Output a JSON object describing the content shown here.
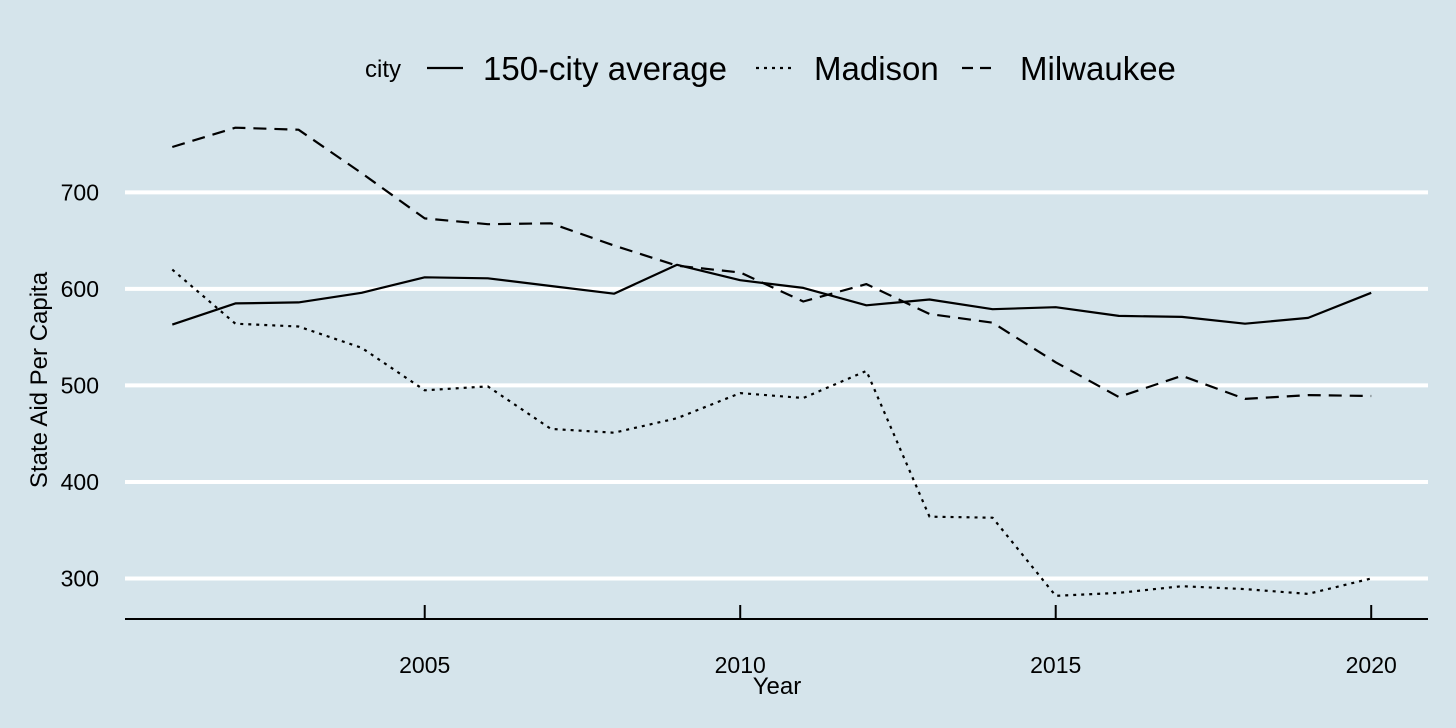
{
  "chart_data": {
    "type": "line",
    "title": "",
    "xlabel": "Year",
    "ylabel": "State Aid Per Capita",
    "xlim": [
      2000.25,
      2020.9
    ],
    "ylim": [
      258,
      775
    ],
    "x_ticks": [
      2005,
      2010,
      2015,
      2020
    ],
    "y_ticks": [
      300,
      400,
      500,
      600,
      700
    ],
    "grid": true,
    "legend_position": "top",
    "legend_title": "city",
    "x": [
      2001,
      2002,
      2003,
      2004,
      2005,
      2006,
      2007,
      2008,
      2009,
      2010,
      2011,
      2012,
      2013,
      2014,
      2015,
      2016,
      2017,
      2018,
      2019,
      2020
    ],
    "series": [
      {
        "name": "150-city average",
        "dash": "solid",
        "values": [
          563,
          585,
          586,
          596,
          612,
          611,
          603,
          595,
          625,
          609,
          601,
          583,
          589,
          579,
          581,
          572,
          571,
          564,
          570,
          596
        ]
      },
      {
        "name": "Madison",
        "dash": "dotted",
        "values": [
          620,
          564,
          561,
          539,
          495,
          499,
          455,
          451,
          466,
          492,
          487,
          515,
          364,
          363,
          282,
          285,
          292,
          289,
          284,
          300
        ]
      },
      {
        "name": "Milwaukee",
        "dash": "dashed",
        "values": [
          747,
          767,
          765,
          720,
          673,
          667,
          668,
          645,
          624,
          617,
          587,
          605,
          574,
          565,
          524,
          488,
          510,
          486,
          490,
          489
        ]
      }
    ]
  },
  "colors": {
    "background": "#d5e4eb",
    "gridline": "#ffffff",
    "line": "#000000"
  }
}
